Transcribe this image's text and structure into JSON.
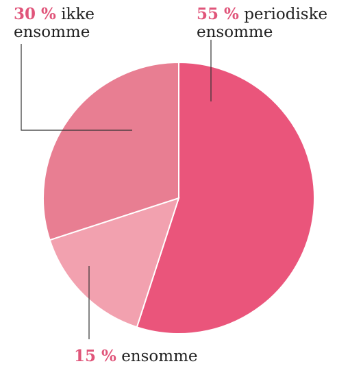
{
  "chart_data": {
    "type": "pie",
    "title": "",
    "slices": [
      {
        "value": 55,
        "pct_label": "55 %",
        "text_line1": "periodiske",
        "text_line2": "ensomme",
        "color": "#ea557b"
      },
      {
        "value": 15,
        "pct_label": "15 %",
        "text_line1": "ensomme",
        "text_line2": "",
        "color": "#f2a1af"
      },
      {
        "value": 30,
        "pct_label": "30 %",
        "text_line1": "ikke",
        "text_line2": "ensomme",
        "color": "#e87e92"
      }
    ],
    "start_angle_deg": 0,
    "direction": "clockwise",
    "slice_border_color": "#ffffff",
    "label_highlight_color": "#e0557a"
  }
}
